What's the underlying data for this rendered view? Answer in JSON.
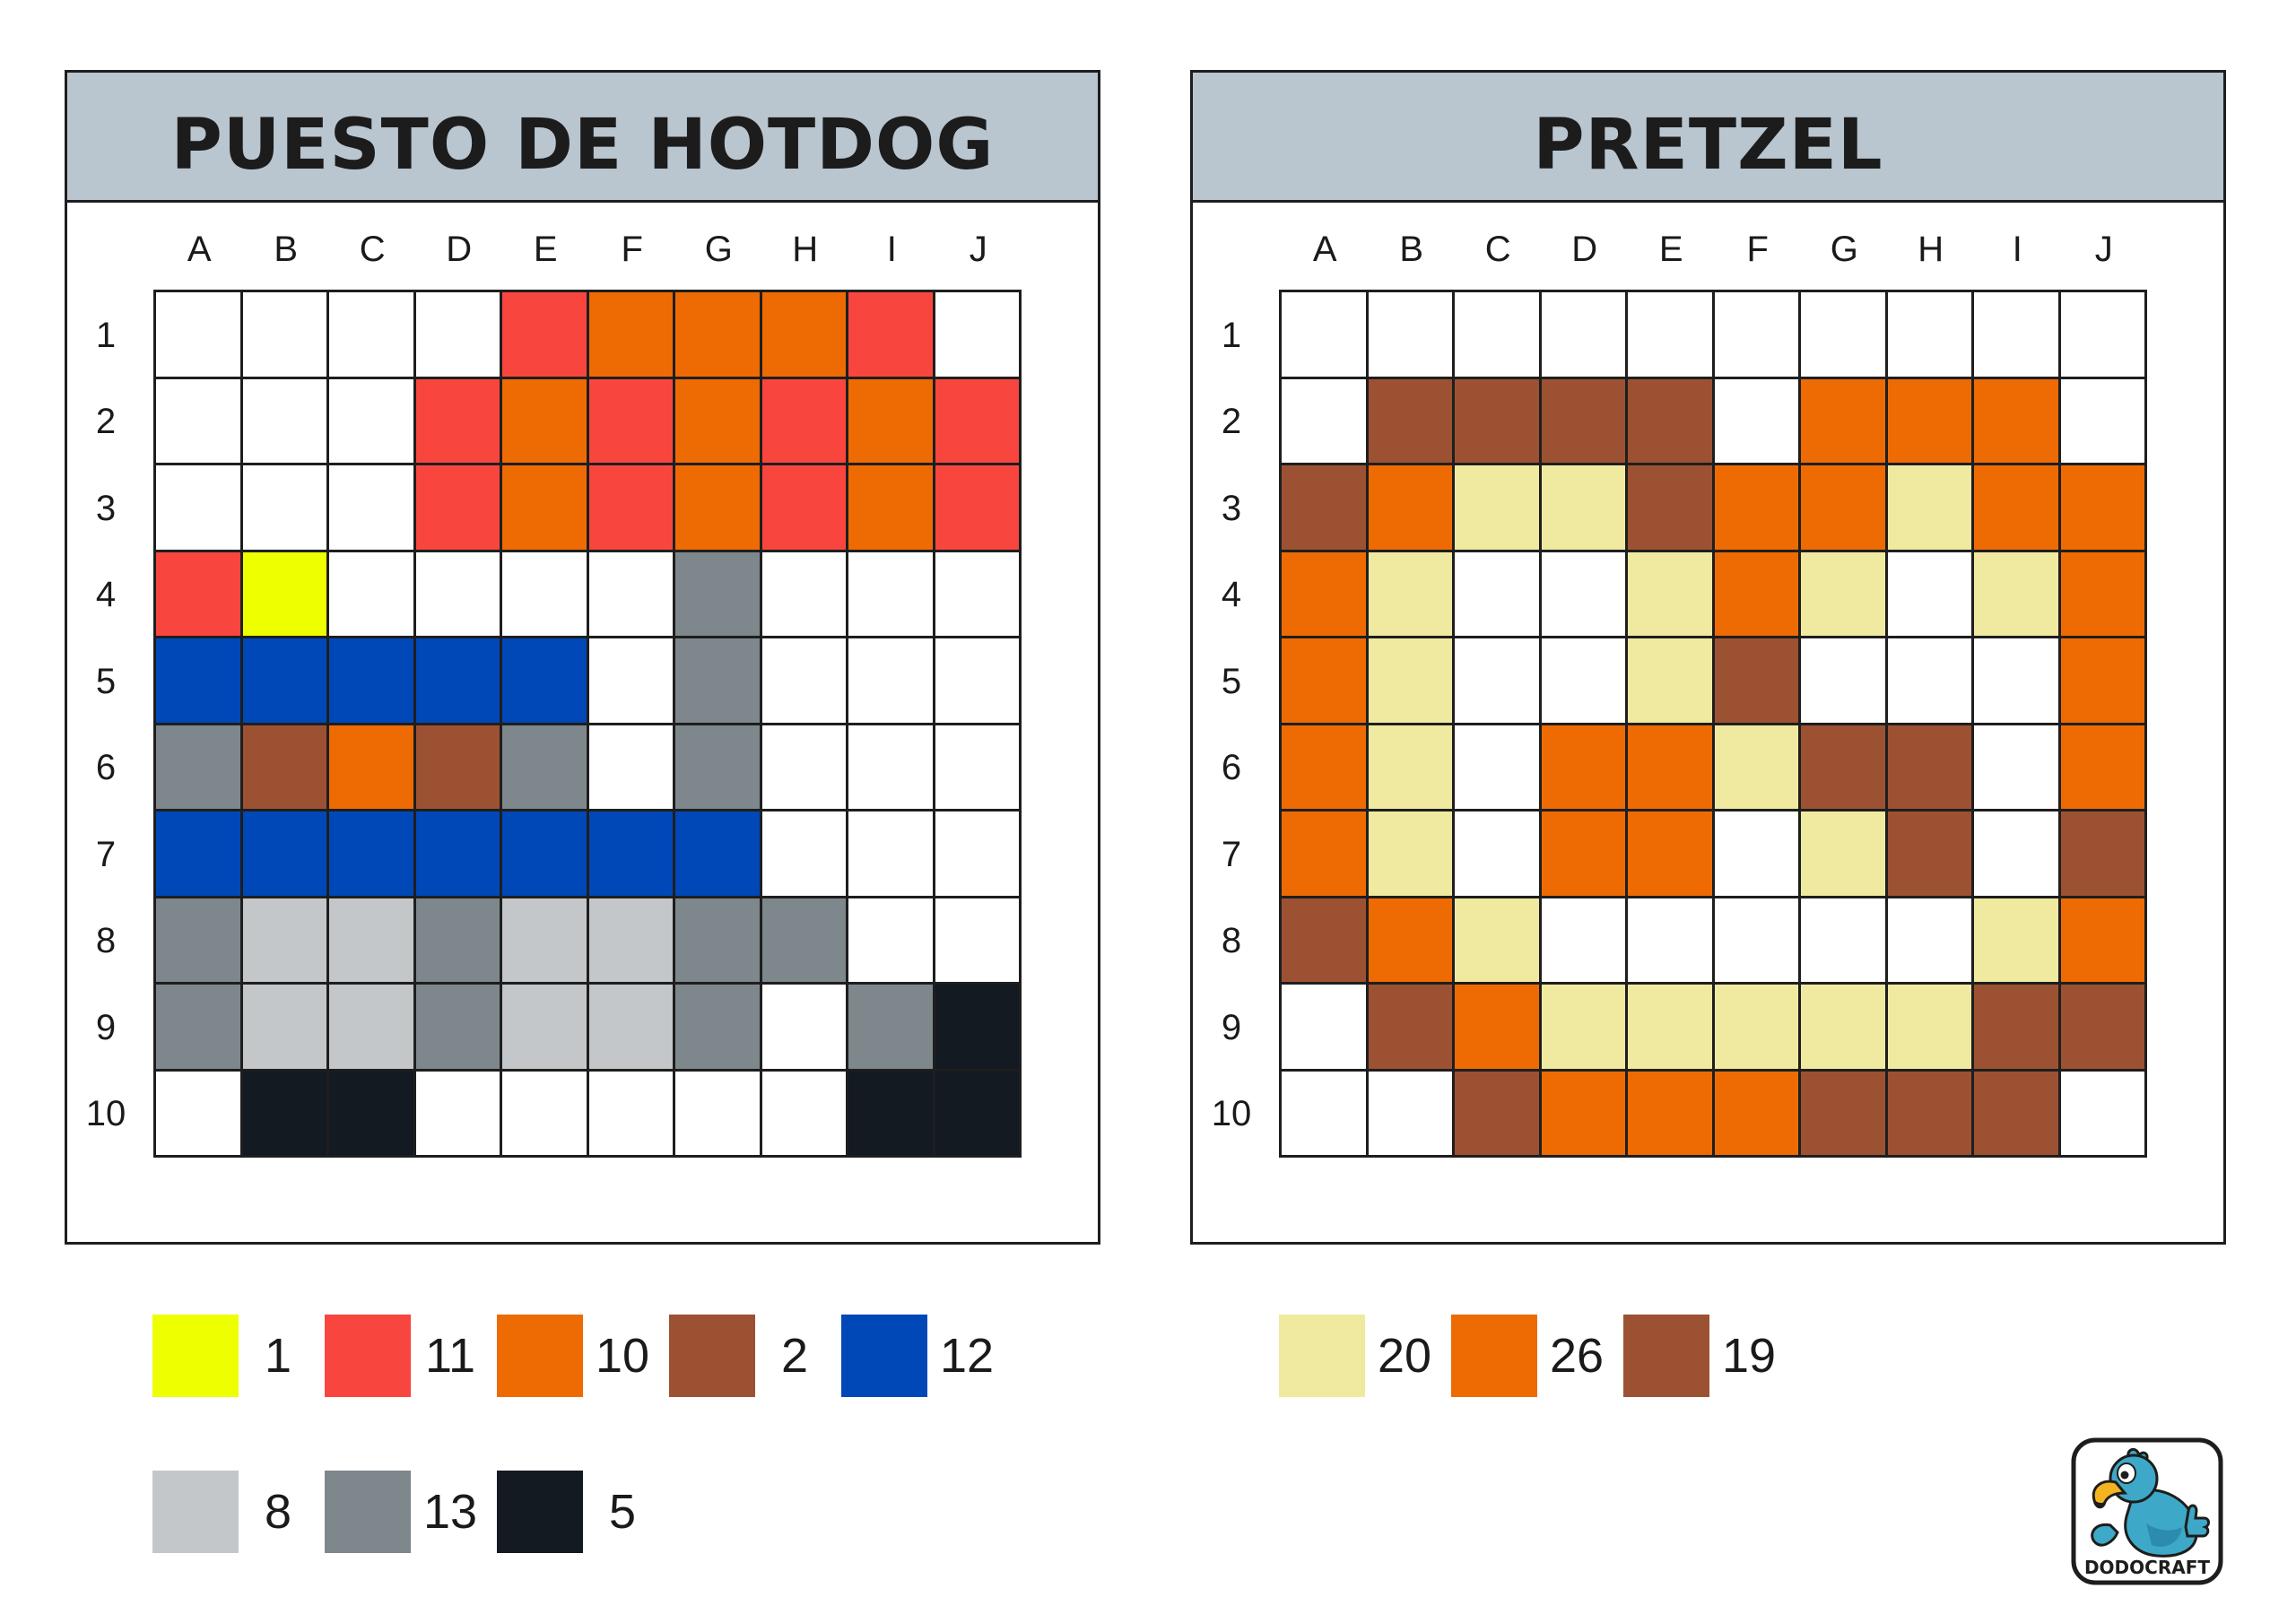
{
  "palette": {
    "white": "#FFFFFF",
    "yellow": "#EEFF00",
    "red": "#F8463F",
    "orange": "#EE6B03",
    "brown": "#9C5232",
    "blue": "#0047B8",
    "lightgray": "#C4C7C9",
    "gray": "#7E878C",
    "black": "#131A21",
    "cream": "#F0EAA1"
  },
  "puzzles": [
    {
      "title": "PUESTO DE HOTDOG",
      "columns": [
        "A",
        "B",
        "C",
        "D",
        "E",
        "F",
        "G",
        "H",
        "I",
        "J"
      ],
      "rows": [
        "1",
        "2",
        "3",
        "4",
        "5",
        "6",
        "7",
        "8",
        "9",
        "10"
      ],
      "grid": [
        [
          "white",
          "white",
          "white",
          "white",
          "red",
          "orange",
          "orange",
          "orange",
          "red",
          "white"
        ],
        [
          "white",
          "white",
          "white",
          "red",
          "orange",
          "red",
          "orange",
          "red",
          "orange",
          "red"
        ],
        [
          "white",
          "white",
          "white",
          "red",
          "orange",
          "red",
          "orange",
          "red",
          "orange",
          "red"
        ],
        [
          "red",
          "yellow",
          "white",
          "white",
          "white",
          "white",
          "gray",
          "white",
          "white",
          "white"
        ],
        [
          "blue",
          "blue",
          "blue",
          "blue",
          "blue",
          "white",
          "gray",
          "white",
          "white",
          "white"
        ],
        [
          "gray",
          "brown",
          "orange",
          "brown",
          "gray",
          "white",
          "gray",
          "white",
          "white",
          "white"
        ],
        [
          "blue",
          "blue",
          "blue",
          "blue",
          "blue",
          "blue",
          "blue",
          "white",
          "white",
          "white"
        ],
        [
          "gray",
          "lightgray",
          "lightgray",
          "gray",
          "lightgray",
          "lightgray",
          "gray",
          "gray",
          "white",
          "white"
        ],
        [
          "gray",
          "lightgray",
          "lightgray",
          "gray",
          "lightgray",
          "lightgray",
          "gray",
          "white",
          "gray",
          "black"
        ],
        [
          "white",
          "black",
          "black",
          "white",
          "white",
          "white",
          "white",
          "white",
          "black",
          "black"
        ]
      ],
      "legend": [
        {
          "color": "yellow",
          "count": "1"
        },
        {
          "color": "red",
          "count": "11"
        },
        {
          "color": "orange",
          "count": "10"
        },
        {
          "color": "brown",
          "count": "2"
        },
        {
          "color": "blue",
          "count": "12"
        },
        {
          "color": "lightgray",
          "count": "8"
        },
        {
          "color": "gray",
          "count": "13"
        },
        {
          "color": "black",
          "count": "5"
        }
      ]
    },
    {
      "title": "PRETZEL",
      "columns": [
        "A",
        "B",
        "C",
        "D",
        "E",
        "F",
        "G",
        "H",
        "I",
        "J"
      ],
      "rows": [
        "1",
        "2",
        "3",
        "4",
        "5",
        "6",
        "7",
        "8",
        "9",
        "10"
      ],
      "grid": [
        [
          "white",
          "white",
          "white",
          "white",
          "white",
          "white",
          "white",
          "white",
          "white",
          "white"
        ],
        [
          "white",
          "brown",
          "brown",
          "brown",
          "brown",
          "white",
          "orange",
          "orange",
          "orange",
          "white"
        ],
        [
          "brown",
          "orange",
          "cream",
          "cream",
          "brown",
          "orange",
          "orange",
          "cream",
          "orange",
          "orange"
        ],
        [
          "orange",
          "cream",
          "white",
          "white",
          "cream",
          "orange",
          "cream",
          "white",
          "cream",
          "orange"
        ],
        [
          "orange",
          "cream",
          "white",
          "white",
          "cream",
          "brown",
          "white",
          "white",
          "white",
          "orange"
        ],
        [
          "orange",
          "cream",
          "white",
          "orange",
          "orange",
          "cream",
          "brown",
          "brown",
          "white",
          "orange"
        ],
        [
          "orange",
          "cream",
          "white",
          "orange",
          "orange",
          "white",
          "cream",
          "brown",
          "white",
          "brown"
        ],
        [
          "brown",
          "orange",
          "cream",
          "white",
          "white",
          "white",
          "white",
          "white",
          "cream",
          "orange"
        ],
        [
          "white",
          "brown",
          "orange",
          "cream",
          "cream",
          "cream",
          "cream",
          "cream",
          "brown",
          "brown"
        ],
        [
          "white",
          "white",
          "brown",
          "orange",
          "orange",
          "orange",
          "brown",
          "brown",
          "brown",
          "white"
        ]
      ],
      "legend": [
        {
          "color": "cream",
          "count": "20"
        },
        {
          "color": "orange",
          "count": "26"
        },
        {
          "color": "brown",
          "count": "19"
        }
      ]
    }
  ],
  "logo": {
    "text": "DODOCRAFT",
    "bird_color": "#3EA8C8",
    "beak_color": "#F4B320"
  }
}
